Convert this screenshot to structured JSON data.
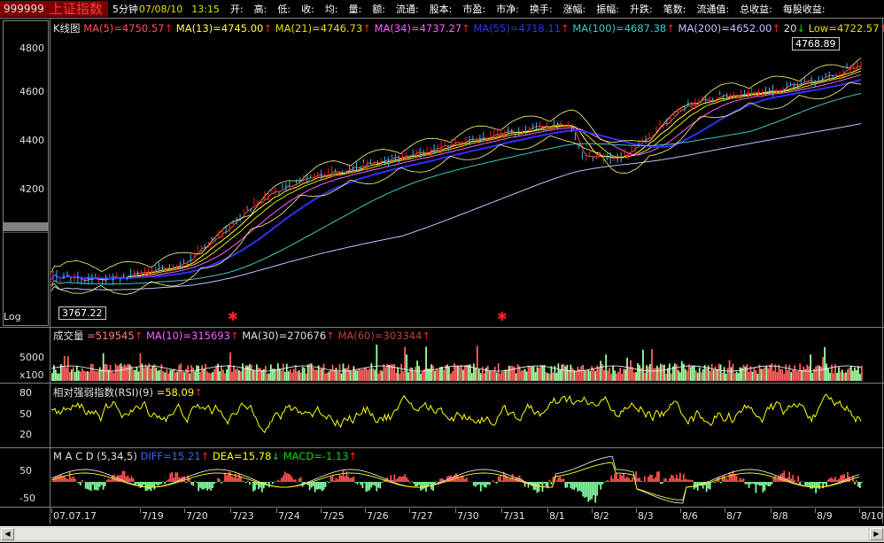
{
  "header": {
    "code": "999999",
    "name": "上证指数",
    "period": "5分钟",
    "date": "07/08/10",
    "time": "13:15",
    "fields": [
      "开:",
      "高:",
      "低:",
      "收:",
      "均:",
      "量:",
      "额:",
      "流通:",
      "股本:",
      "市盈:",
      "市净:",
      "换手:",
      "涨幅:",
      "振幅:",
      "升跌:",
      "笔数:",
      "流通值:",
      "总收益:",
      "每股收益:"
    ]
  },
  "kline": {
    "title": "K线图",
    "ma": [
      {
        "label": "MA(5)=4750.57",
        "color": "#ff5050"
      },
      {
        "label": "MA(13)=4745.00",
        "color": "#ffff40"
      },
      {
        "label": "MA(21)=4746.73",
        "color": "#e0e000"
      },
      {
        "label": "MA(34)=4737.27",
        "color": "#ff60ff"
      },
      {
        "label": "MA(55)=4718.11",
        "color": "#3030ff"
      },
      {
        "label": "MA(100)=4687.38",
        "color": "#40c8c8"
      },
      {
        "label": "MA(200)=4652.00",
        "color": "#c0c0ff"
      }
    ],
    "bb_partial": "20",
    "low_label": "Low=4722.57",
    "high_box": "4768.89",
    "low_box": "3767.22",
    "log_label": "Log",
    "y_ticks": [
      "4800",
      "4600",
      "4400",
      "4200"
    ]
  },
  "volume": {
    "title": "成交量",
    "value": "=519545",
    "ma10": "MA(10)=315693",
    "ma30": "MA(30)=270676",
    "ma60": "MA(60)=303344",
    "y_ticks": [
      "5000",
      "x100"
    ]
  },
  "rsi": {
    "title": "相对强弱指数(RSI)(9)",
    "value": "=58.09",
    "y_ticks": [
      "80",
      "50",
      "20"
    ]
  },
  "macd": {
    "title": "M A C D",
    "params": "(5,34,5)",
    "diff": "DIFF=15.21",
    "dea": "DEA=15.78",
    "macd": "MACD=-1.13",
    "y_ticks": [
      "50",
      "-50"
    ]
  },
  "xaxis": {
    "labels": [
      "07.07.17",
      "7/19",
      "7/20",
      "7/23",
      "7/24",
      "7/25",
      "7/26",
      "7/27",
      "7/30",
      "7/31",
      "8/1",
      "8/2",
      "8/3",
      "8/6",
      "8/7",
      "8/8",
      "8/9",
      "8/10"
    ]
  },
  "colors": {
    "up": "#ff2020",
    "down": "#00dd00",
    "rsi_line": "#ffff00",
    "diff": "#e0e0e0",
    "dea": "#ffff00",
    "grid": "#808080"
  }
}
